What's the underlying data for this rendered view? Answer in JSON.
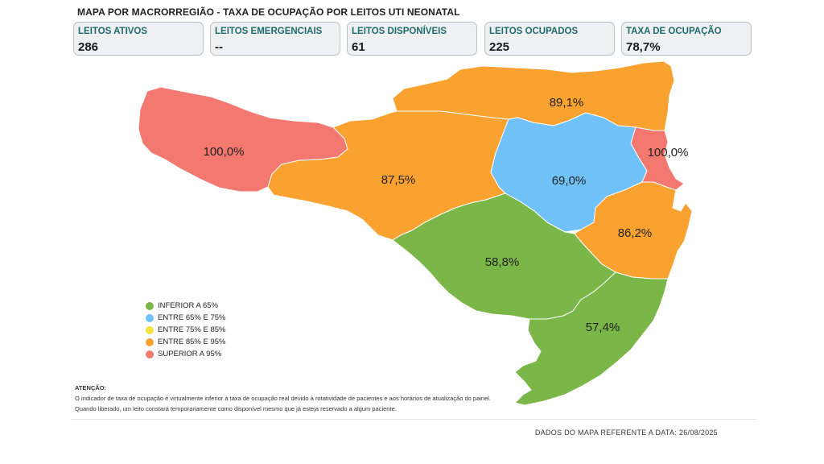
{
  "title": "MAPA POR MACRORREGIÃO - TAXA DE OCUPAÇÃO POR LEITOS UTI NEONATAL",
  "kpis": [
    {
      "label": "LEITOS ATIVOS",
      "value": "286"
    },
    {
      "label": "LEITOS EMERGENCIAIS",
      "value": "--"
    },
    {
      "label": "LEITOS DISPONÍVEIS",
      "value": "61"
    },
    {
      "label": "LEITOS OCUPADOS",
      "value": "225"
    },
    {
      "label": "TAXA DE OCUPAÇÃO",
      "value": "78,7%"
    }
  ],
  "colors": {
    "green": "#7ab648",
    "blue": "#6fc1f7",
    "yellow": "#f5e33b",
    "orange": "#f9a22f",
    "red": "#f3786f"
  },
  "regions": [
    {
      "label": "100,0%",
      "category": "red"
    },
    {
      "label": "87,5%",
      "category": "orange"
    },
    {
      "label": "89,1%",
      "category": "orange"
    },
    {
      "label": "69,0%",
      "category": "blue"
    },
    {
      "label": "100,0%",
      "category": "red"
    },
    {
      "label": "86,2%",
      "category": "orange"
    },
    {
      "label": "58,8%",
      "category": "green"
    },
    {
      "label": "57,4%",
      "category": "green"
    }
  ],
  "legend": [
    {
      "label": "INFERIOR A 65%",
      "category": "green"
    },
    {
      "label": "ENTRE 65% E 75%",
      "category": "blue"
    },
    {
      "label": "ENTRE 75% E 85%",
      "category": "yellow"
    },
    {
      "label": "ENTRE 85% E 95%",
      "category": "orange"
    },
    {
      "label": "SUPERIOR A 95%",
      "category": "red"
    }
  ],
  "attention": {
    "heading": "ATENÇÃO:",
    "line1": "O indicador de taxa de ocupação é virtualmente inferior à taxa de ocupação real devido à rotatividade de pacientes e aos horários de atualização do painel.",
    "line2": "Quando liberado, um leito constará temporariamente como disponível mesmo que já esteja reservado a algum paciente."
  },
  "date_note": "DADOS DO MAPA REFERENTE A DATA: 26/08/2025"
}
